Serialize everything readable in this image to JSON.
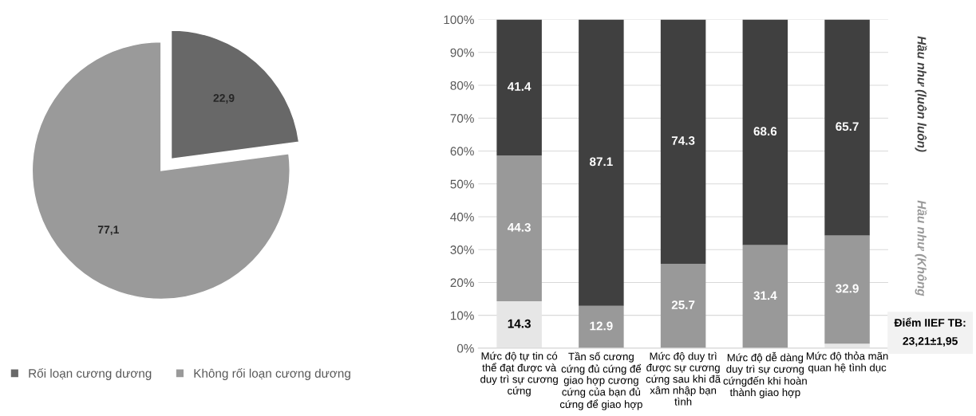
{
  "chart_data": [
    {
      "type": "pie",
      "categories": [
        "Rối loạn cương dương",
        "Không rối loạn cương dương"
      ],
      "values": [
        22.9,
        77.1
      ],
      "colors": [
        "#686868",
        "#9a9a9a"
      ],
      "value_labels": [
        "22,9",
        "77,1"
      ],
      "legend": "bottom"
    },
    {
      "type": "bar",
      "stacked": true,
      "categories": [
        "Mức độ tự tin có thể đạt được và duy trì sự cương cứng",
        "Tần số cương cứng đủ cứng để giao hợp cương cứng của bạn đủ cứng để giao hợp",
        "Mức độ duy trì được sự cương cứng sau khi đã xâm nhập bạn tình",
        "Mức độ dễ dàng duy trì sự cương cứngđến khi hoàn thành giao hợp",
        "Mức độ thỏa mãn quan hệ tình dục"
      ],
      "series": [
        {
          "color": "#e6e6e6",
          "values": [
            14.3,
            null,
            null,
            null,
            1.4
          ],
          "value_labels": [
            "14.3",
            null,
            null,
            null,
            null
          ]
        },
        {
          "name": "Hầu như (Không",
          "color": "#999999",
          "values": [
            44.3,
            12.9,
            25.7,
            31.4,
            32.9
          ]
        },
        {
          "name": "Hầu như (luôn luôn)",
          "color": "#404040",
          "values": [
            41.4,
            87.1,
            74.3,
            68.6,
            65.7
          ]
        }
      ],
      "ylim": [
        0,
        100
      ],
      "yticks": [
        {
          "value": 0,
          "label": "0%"
        },
        {
          "value": 10,
          "label": "10%"
        },
        {
          "value": 20,
          "label": "20%"
        },
        {
          "value": 30,
          "label": "30%"
        },
        {
          "value": 40,
          "label": "40%"
        },
        {
          "value": 50,
          "label": "50%"
        },
        {
          "value": 60,
          "label": "60%"
        },
        {
          "value": 70,
          "label": "70%"
        },
        {
          "value": 80,
          "label": "80%"
        },
        {
          "value": 90,
          "label": "90%"
        },
        {
          "value": 100,
          "label": "100%"
        }
      ],
      "grid": "y",
      "data_labels": true,
      "legend": "right",
      "annotations": [
        "Điểm IIEF TB:\n23,21±1,95"
      ]
    }
  ]
}
